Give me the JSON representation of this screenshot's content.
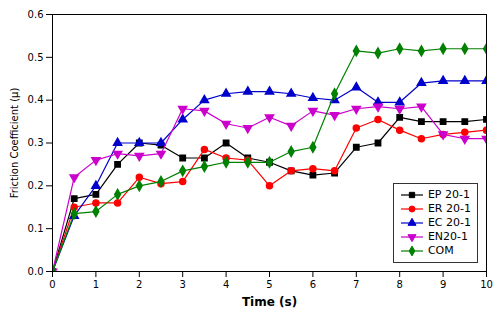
{
  "chart_data": {
    "type": "line",
    "xlabel": "Time (s)",
    "ylabel": "Friction Coefficient (μ)",
    "xlim": [
      0,
      10
    ],
    "ylim": [
      0.0,
      0.6
    ],
    "xticks": [
      0,
      1,
      2,
      3,
      4,
      5,
      6,
      7,
      8,
      9,
      10
    ],
    "yticks": [
      {
        "value": 0.0,
        "label": "0.0"
      },
      0.1,
      0.2,
      0.3,
      0.4,
      0.5,
      0.6
    ],
    "legend": "lower right",
    "grid": false,
    "x": [
      0,
      0.5,
      1.0,
      1.5,
      2.0,
      2.5,
      3.0,
      3.5,
      4.0,
      4.5,
      5.0,
      5.5,
      6.0,
      6.5,
      7.0,
      7.5,
      8.0,
      8.5,
      9.0,
      9.5,
      10.0
    ],
    "series": [
      {
        "name": "EP 20-1",
        "color": "#000000",
        "marker": "square",
        "values": [
          0.0,
          0.17,
          0.18,
          0.25,
          0.3,
          0.295,
          0.265,
          0.265,
          0.3,
          0.265,
          0.255,
          0.235,
          0.225,
          0.23,
          0.29,
          0.3,
          0.36,
          0.35,
          0.35,
          0.35,
          0.355
        ]
      },
      {
        "name": "ER 20-1",
        "color": "#ff0000",
        "marker": "circle",
        "values": [
          0.0,
          0.15,
          0.16,
          0.16,
          0.22,
          0.205,
          0.21,
          0.285,
          0.265,
          0.26,
          0.2,
          0.235,
          0.24,
          0.235,
          0.335,
          0.355,
          0.33,
          0.31,
          0.32,
          0.325,
          0.33
        ]
      },
      {
        "name": "EC 20-1",
        "color": "#0000cc",
        "marker": "triangle-up",
        "values": [
          0.0,
          0.13,
          0.2,
          0.3,
          0.3,
          0.3,
          0.355,
          0.4,
          0.415,
          0.42,
          0.42,
          0.415,
          0.405,
          0.4,
          0.43,
          0.395,
          0.395,
          0.44,
          0.445,
          0.445,
          0.445
        ]
      },
      {
        "name": "EN20-1",
        "color": "#cc00cc",
        "marker": "triangle-down",
        "values": [
          0.0,
          0.22,
          0.26,
          0.275,
          0.27,
          0.275,
          0.38,
          0.375,
          0.345,
          0.335,
          0.36,
          0.34,
          0.375,
          0.365,
          0.38,
          0.385,
          0.38,
          0.385,
          0.32,
          0.31,
          0.31
        ]
      },
      {
        "name": "COM",
        "color": "#008000",
        "marker": "diamond",
        "values": [
          0.0,
          0.135,
          0.14,
          0.18,
          0.2,
          0.21,
          0.235,
          0.245,
          0.255,
          0.255,
          0.255,
          0.28,
          0.29,
          0.415,
          0.515,
          0.51,
          0.52,
          0.515,
          0.52,
          0.52,
          0.52
        ]
      }
    ]
  }
}
